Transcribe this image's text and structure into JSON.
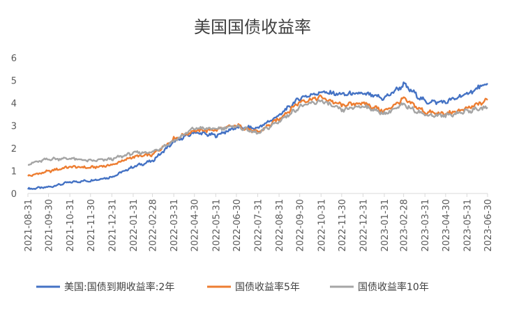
{
  "chart_data": {
    "type": "line",
    "title": "美国国债收益率",
    "xlabel": "",
    "ylabel": "",
    "ylim": [
      0,
      6
    ],
    "yticks": [
      0,
      1,
      2,
      3,
      4,
      5,
      6
    ],
    "grid": false,
    "legend": "bottom",
    "x_ticks": [
      "2021-08-31",
      "2021-09-30",
      "2021-10-31",
      "2021-11-30",
      "2021-12-31",
      "2022-01-31",
      "2022-02-28",
      "2022-03-31",
      "2022-04-30",
      "2022-05-31",
      "2022-06-30",
      "2022-07-31",
      "2022-08-31",
      "2022-09-30",
      "2022-10-31",
      "2022-11-30",
      "2022-12-31",
      "2023-01-31",
      "2023-02-28",
      "2023-03-31",
      "2023-04-30",
      "2023-05-31",
      "2023-06-30"
    ],
    "x": [
      "2021-08-31",
      "2021-09-30",
      "2021-10-31",
      "2021-11-30",
      "2021-12-31",
      "2022-01-31",
      "2022-02-28",
      "2022-03-31",
      "2022-04-30",
      "2022-05-31",
      "2022-06-30",
      "2022-07-31",
      "2022-08-31",
      "2022-09-30",
      "2022-10-31",
      "2022-11-30",
      "2022-12-31",
      "2023-01-31",
      "2023-02-28",
      "2023-03-31",
      "2023-04-30",
      "2023-05-31",
      "2023-06-30"
    ],
    "series": [
      {
        "name": "美国:国债到期收益率:2年",
        "color": "#4472C4",
        "values": [
          0.2,
          0.28,
          0.5,
          0.57,
          0.73,
          1.18,
          1.44,
          2.28,
          2.7,
          2.56,
          2.92,
          2.89,
          3.45,
          4.22,
          4.48,
          4.38,
          4.41,
          4.21,
          4.81,
          4.06,
          4.04,
          4.4,
          4.87
        ]
      },
      {
        "name": "国债收益率5年",
        "color": "#ED7D31",
        "values": [
          0.77,
          0.98,
          1.18,
          1.14,
          1.26,
          1.62,
          1.71,
          2.42,
          2.78,
          2.81,
          3.01,
          2.7,
          3.3,
          4.06,
          4.25,
          3.9,
          4.0,
          3.63,
          4.18,
          3.6,
          3.51,
          3.74,
          4.13
        ]
      },
      {
        "name": "国债收益率10年",
        "color": "#A5A5A5",
        "values": [
          1.3,
          1.52,
          1.55,
          1.44,
          1.52,
          1.79,
          1.83,
          2.32,
          2.89,
          2.85,
          2.98,
          2.65,
          3.19,
          3.83,
          4.1,
          3.68,
          3.88,
          3.52,
          3.92,
          3.48,
          3.44,
          3.64,
          3.81
        ]
      }
    ]
  }
}
